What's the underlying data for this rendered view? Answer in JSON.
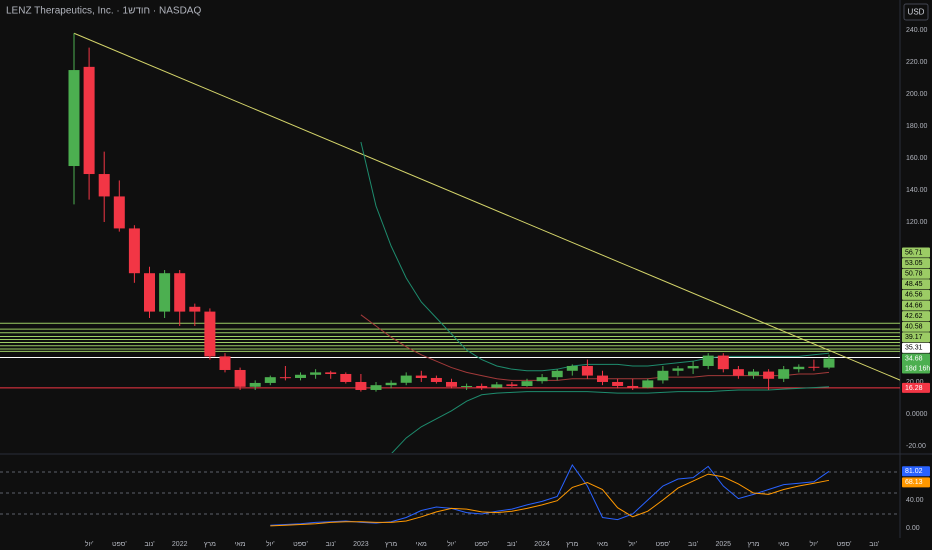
{
  "chart_data": [
    {
      "type": "candlestick",
      "title": "LENZ Therapeutics, Inc. · 1חודש · NASDAQ",
      "currency": "USD",
      "countdown": "18d 16h",
      "categories": [
        null,
        "יול'",
        null,
        "ספט'",
        null,
        "נוב'",
        null,
        "2022",
        null,
        "מרץ",
        null,
        "מאי",
        null,
        "יול'",
        null,
        "ספט'",
        null,
        "נוב'",
        null,
        "2023",
        null,
        "מרץ",
        null,
        "מאי",
        null,
        "יול'",
        null,
        "ספט'",
        null,
        "נוב'",
        null,
        "2024",
        null,
        "מרץ",
        null,
        "מאי",
        null,
        "יול'",
        null,
        "ספט'",
        null,
        "נוב'",
        null,
        "2025",
        null,
        "מרץ",
        null,
        "מאי",
        null,
        "יול'",
        null,
        "ספט'",
        null,
        "נוב'",
        null
      ],
      "open": [
        155,
        217,
        150,
        136,
        116,
        88,
        64,
        88,
        67,
        64,
        36,
        27.5,
        17,
        19.4,
        23,
        22.5,
        24.5,
        26,
        25,
        20,
        15,
        18,
        19.5,
        24,
        22.5,
        20,
        17,
        17.5,
        16.5,
        18.5,
        17.5,
        20.5,
        23,
        27,
        30,
        24,
        20,
        17.5,
        16.5,
        21,
        27,
        28.5,
        30,
        36.5,
        28,
        24,
        26.5,
        22,
        28,
        29.5,
        29,
        null,
        null,
        null,
        null
      ],
      "high": [
        238,
        229,
        164,
        146,
        118,
        92,
        90,
        90,
        69,
        66,
        38,
        29,
        21,
        24,
        30,
        26,
        28,
        27,
        26,
        25,
        20,
        21,
        26,
        27,
        24,
        22,
        19,
        19,
        20,
        20,
        22,
        25,
        28,
        31,
        34,
        27,
        22,
        22,
        22,
        30,
        30,
        33,
        38,
        38,
        30,
        28,
        28,
        30,
        31,
        34,
        37,
        null,
        null,
        null,
        null
      ],
      "low": [
        131,
        134,
        120,
        114,
        82,
        60,
        60,
        55,
        55,
        34,
        26,
        15,
        15,
        18,
        21,
        21,
        22,
        22,
        19,
        14,
        14,
        16,
        18,
        20,
        19,
        16,
        15,
        15,
        16,
        17,
        17,
        19,
        21,
        24,
        22,
        18,
        16,
        15,
        16,
        19,
        24,
        25,
        28,
        26,
        22,
        22,
        15,
        20,
        26,
        27,
        28,
        null,
        null,
        null,
        null
      ],
      "close": [
        215,
        150,
        136,
        116,
        88,
        64,
        88,
        64,
        64,
        36,
        27.5,
        17,
        19.4,
        23,
        22.5,
        24.5,
        26,
        25,
        20,
        15,
        18,
        19.5,
        24,
        22.5,
        20,
        17,
        17.5,
        16.5,
        18.5,
        17.5,
        20.5,
        23,
        27,
        30,
        24,
        20,
        17.5,
        16.5,
        21,
        27,
        28.5,
        30,
        36.5,
        28,
        24,
        26.5,
        22,
        28,
        29.5,
        29,
        34.68,
        null,
        null,
        null,
        null
      ],
      "up_color": "#4caf50",
      "down_color": "#f23645",
      "ylim": [
        -24.4,
        258.8
      ],
      "yticks": [
        {
          "value": 240,
          "label": "240.00"
        },
        {
          "value": 220,
          "label": "220.00"
        },
        {
          "value": 200,
          "label": "200.00"
        },
        {
          "value": 180,
          "label": "180.00"
        },
        {
          "value": 160,
          "label": "160.00"
        },
        {
          "value": 140,
          "label": "140.00"
        },
        {
          "value": 120,
          "label": "120.00"
        },
        {
          "value": 20,
          "label": "20.00"
        },
        {
          "value": 0,
          "label": "0.0000"
        },
        {
          "value": -20,
          "label": "-20.00"
        }
      ],
      "levels": [
        {
          "value": 56.71,
          "color": "#9ccc65"
        },
        {
          "value": 53.05,
          "color": "#9ccc65"
        },
        {
          "value": 50.78,
          "color": "#9ccc65"
        },
        {
          "value": 48.45,
          "color": "#9ccc65"
        },
        {
          "value": 46.56,
          "color": "#9ccc65"
        },
        {
          "value": 44.66,
          "color": "#9ccc65"
        },
        {
          "value": 42.62,
          "color": "#9ccc65"
        },
        {
          "value": 40.58,
          "color": "#9ccc65"
        },
        {
          "value": 39.17,
          "color": "#9ccc65"
        },
        {
          "value": 35.31,
          "color": "#ffffff"
        },
        {
          "value": 16.28,
          "color": "#f23645"
        }
      ],
      "trendline": {
        "from": [
          0,
          238
        ],
        "to": [
          55,
          20
        ],
        "color": "#d4d46a"
      },
      "overlays": [
        {
          "color": "#1e8c6e",
          "values": [
            null,
            null,
            null,
            null,
            null,
            null,
            null,
            null,
            null,
            null,
            null,
            null,
            null,
            null,
            null,
            null,
            null,
            null,
            null,
            170,
            130,
            105,
            85,
            70,
            60,
            50,
            40,
            34,
            30,
            28,
            27,
            27,
            28,
            30,
            31,
            31,
            31,
            30,
            30,
            31,
            32,
            33,
            35,
            36,
            36,
            36,
            36,
            36,
            36,
            37,
            38,
            null,
            null,
            null,
            null
          ]
        },
        {
          "color": "#a33a3a",
          "values": [
            null,
            null,
            null,
            null,
            null,
            null,
            null,
            null,
            null,
            null,
            null,
            null,
            null,
            null,
            null,
            null,
            null,
            null,
            null,
            62,
            55,
            48,
            42,
            37,
            33,
            29,
            26,
            24,
            22,
            21,
            21,
            21,
            21,
            22,
            22,
            22,
            22,
            22,
            22,
            23,
            23,
            23,
            24,
            24,
            24,
            24,
            24,
            24,
            25,
            25,
            26,
            null,
            null,
            null,
            null
          ]
        },
        {
          "color": "#1e8c6e",
          "values": [
            null,
            null,
            null,
            null,
            null,
            null,
            null,
            null,
            null,
            null,
            null,
            null,
            null,
            null,
            null,
            null,
            null,
            null,
            null,
            null,
            null,
            -25,
            -15,
            -8,
            -3,
            2,
            8,
            12,
            13,
            13.5,
            14,
            14,
            14,
            14,
            14,
            13.5,
            13,
            13,
            13,
            13.5,
            14,
            14,
            14,
            14.5,
            15,
            15,
            15,
            15.5,
            16,
            16.5,
            17,
            null,
            null,
            null,
            null
          ]
        }
      ]
    },
    {
      "type": "line",
      "ylim": [
        -14.3,
        104.3
      ],
      "yticks": [
        {
          "value": 40,
          "label": "40.00"
        },
        {
          "value": 0,
          "label": "0.00"
        }
      ],
      "hlines": [
        80,
        50,
        20
      ],
      "series": [
        {
          "color": "#2962ff",
          "values": [
            null,
            null,
            null,
            null,
            null,
            null,
            null,
            null,
            null,
            null,
            null,
            null,
            null,
            4,
            5,
            6,
            8,
            9,
            10,
            8,
            7,
            9,
            15,
            25,
            30,
            28,
            22,
            20,
            24,
            27,
            33,
            38,
            45,
            90,
            60,
            15,
            12,
            20,
            40,
            60,
            70,
            72,
            88,
            60,
            42,
            48,
            55,
            62,
            64,
            66,
            81.02,
            null,
            null,
            null,
            null
          ]
        },
        {
          "color": "#ff9800",
          "values": [
            null,
            null,
            null,
            null,
            null,
            null,
            null,
            null,
            null,
            null,
            null,
            null,
            null,
            3,
            4,
            5,
            6,
            8,
            9,
            9,
            8,
            8,
            10,
            16,
            23,
            28,
            27,
            23,
            22,
            24,
            28,
            33,
            39,
            58,
            65,
            55,
            29,
            16,
            24,
            40,
            57,
            67,
            77,
            73,
            63,
            50,
            48,
            55,
            60,
            64,
            68.13,
            null,
            null,
            null,
            null
          ]
        }
      ]
    }
  ]
}
